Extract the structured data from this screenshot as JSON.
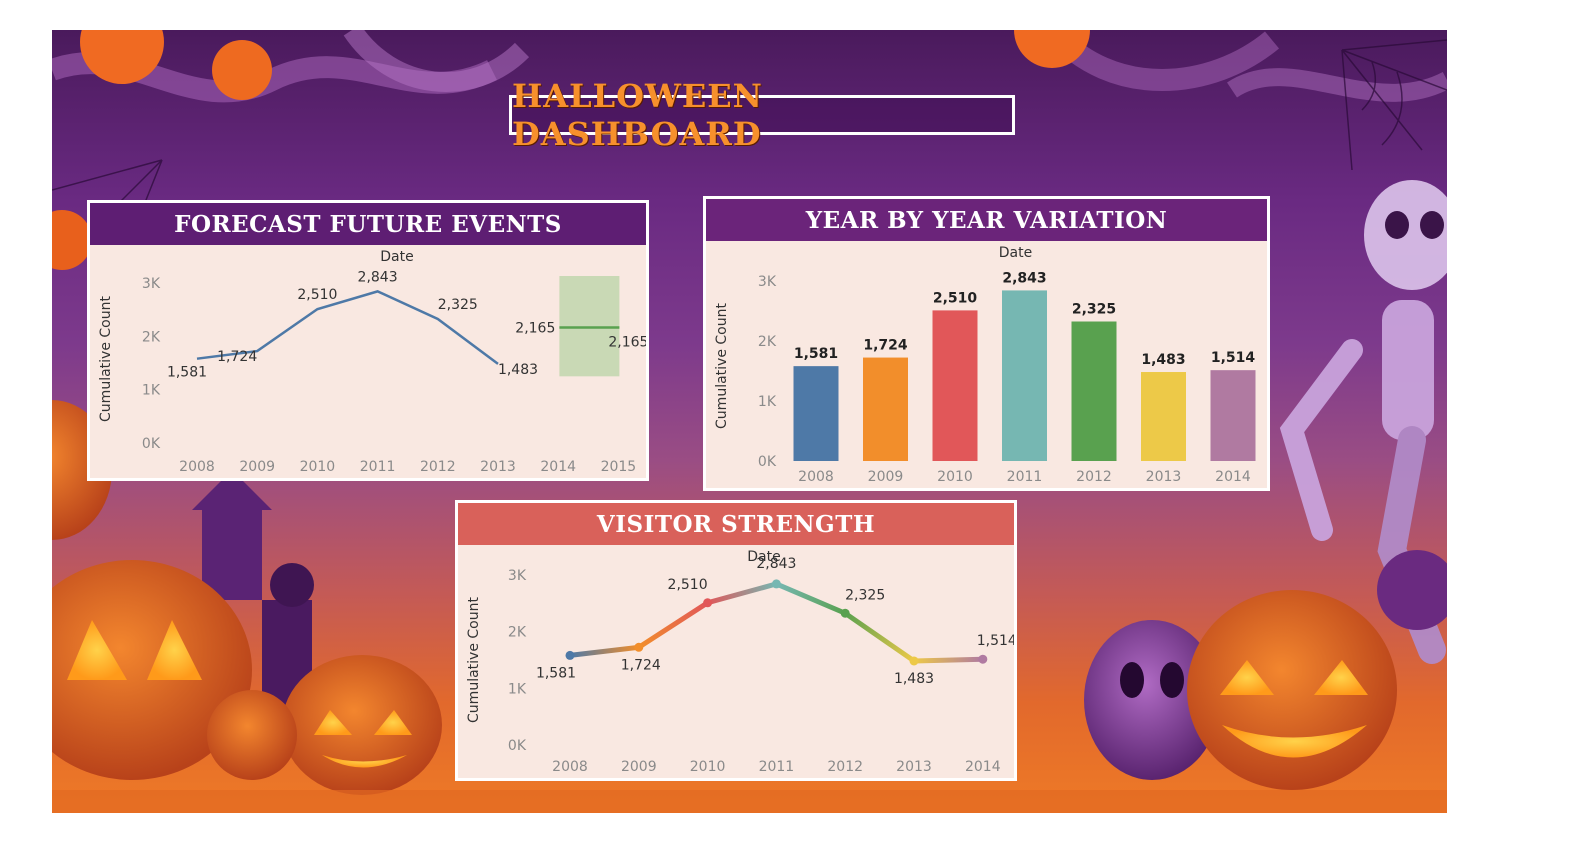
{
  "header": {
    "title": "HALLOWEEN DASHBOARD"
  },
  "colors": {
    "forecast_head": "#5e1e73",
    "yoy_head": "#6b247a",
    "visitor_head": "#d9615a",
    "line": "#4e79a7",
    "forecast_band": "#c9d9b5",
    "forecast_line": "#59a14f"
  },
  "chart_data": [
    {
      "id": "forecast",
      "type": "line",
      "title": "FORECAST FUTURE EVENTS",
      "column_header": "Date",
      "ylabel": "Cumulative Count",
      "y_ticks": [
        "0K",
        "1K",
        "2K",
        "3K"
      ],
      "ylim": [
        0,
        3000
      ],
      "x": [
        "2008",
        "2009",
        "2010",
        "2011",
        "2012",
        "2013",
        "2014",
        "2015"
      ],
      "series": [
        {
          "values": [
            1581,
            1724,
            2510,
            2843,
            2325,
            1483
          ]
        }
      ],
      "labels": [
        "1,581",
        "1,724",
        "2,510",
        "2,843",
        "2,325",
        "1,483"
      ],
      "forecast": {
        "year": "2015",
        "value": 2165,
        "label_left": "2,165",
        "label_right": "2,165",
        "band": [
          1250,
          3000
        ]
      }
    },
    {
      "id": "yoy",
      "type": "bar",
      "title": "YEAR BY YEAR VARIATION",
      "column_header": "Date",
      "ylabel": "Cumulative Count",
      "y_ticks": [
        "0K",
        "1K",
        "2K",
        "3K"
      ],
      "ylim": [
        0,
        3000
      ],
      "categories": [
        "2008",
        "2009",
        "2010",
        "2011",
        "2012",
        "2013",
        "2014"
      ],
      "values": [
        1581,
        1724,
        2510,
        2843,
        2325,
        1483,
        1514
      ],
      "labels": [
        "1,581",
        "1,724",
        "2,510",
        "2,843",
        "2,325",
        "1,483",
        "1,514"
      ],
      "bar_colors": [
        "#4e79a7",
        "#f28e2b",
        "#e15759",
        "#76b7b2",
        "#59a14f",
        "#edc948",
        "#b07aa1"
      ]
    },
    {
      "id": "visitor",
      "type": "line",
      "title": "VISITOR STRENGTH",
      "column_header": "Date",
      "ylabel": "Cumulative Count",
      "y_ticks": [
        "0K",
        "1K",
        "2K",
        "3K"
      ],
      "ylim": [
        0,
        3000
      ],
      "x": [
        "2008",
        "2009",
        "2010",
        "2011",
        "2012",
        "2013",
        "2014"
      ],
      "series": [
        {
          "values": [
            1581,
            1724,
            2510,
            2843,
            2325,
            1483,
            1514
          ]
        }
      ],
      "labels": [
        "1,581",
        "1,724",
        "2,510",
        "2,843",
        "2,325",
        "1,483",
        "1,514"
      ],
      "point_colors": [
        "#4e79a7",
        "#f28e2b",
        "#e15759",
        "#76b7b2",
        "#59a14f",
        "#edc948",
        "#b07aa1"
      ]
    }
  ]
}
